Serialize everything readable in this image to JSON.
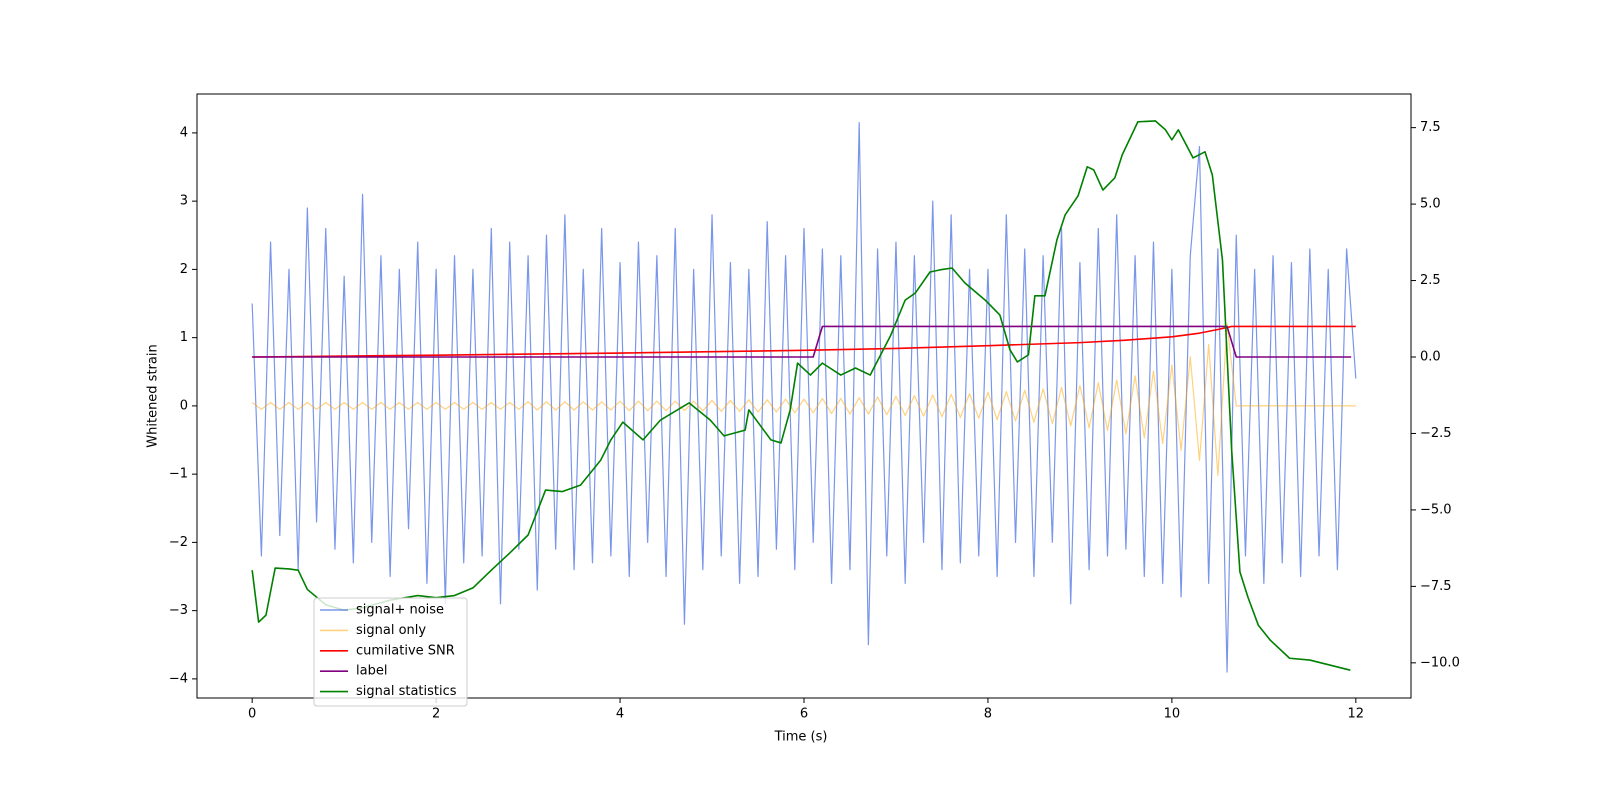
{
  "chart_data": {
    "type": "line",
    "xlabel": "Time (s)",
    "ylabel": "Whitened strain",
    "xlim": [
      -0.6,
      12.6
    ],
    "ylim": [
      -4.28,
      4.57
    ],
    "y2lim": [
      -11.15,
      8.6
    ],
    "xticks": [
      0,
      2,
      4,
      6,
      8,
      10,
      12
    ],
    "yticks": [
      {
        "value": -4,
        "label": "−4"
      },
      {
        "value": -3,
        "label": "−3"
      },
      {
        "value": -2,
        "label": "−2"
      },
      {
        "value": -1,
        "label": "−1"
      },
      0,
      1,
      2,
      3,
      4
    ],
    "y2ticks": [
      {
        "value": -10,
        "label": "−10.0"
      },
      {
        "value": -7.5,
        "label": "−7.5"
      },
      {
        "value": -5,
        "label": "−5.0"
      },
      {
        "value": -2.5,
        "label": "−2.5"
      },
      {
        "value": 0,
        "label": "0.0"
      },
      {
        "value": 2.5,
        "label": "2.5"
      },
      {
        "value": 5,
        "label": "5.0"
      },
      {
        "value": 7.5,
        "label": "7.5"
      }
    ],
    "grid": false,
    "legend": "lower left",
    "x": [
      0,
      0.1,
      0.2,
      0.3,
      0.4,
      0.5,
      0.6,
      0.7,
      0.8,
      0.9,
      1,
      1.1,
      1.2,
      1.3,
      1.4,
      1.5,
      1.6,
      1.7,
      1.8,
      1.9,
      2,
      2.1,
      2.2,
      2.3,
      2.4,
      2.5,
      2.6,
      2.7,
      2.8,
      2.9,
      3,
      3.1,
      3.2,
      3.3,
      3.4,
      3.5,
      3.6,
      3.7,
      3.8,
      3.9,
      4,
      4.1,
      4.2,
      4.3,
      4.4,
      4.5,
      4.6,
      4.7,
      4.8,
      4.9,
      5,
      5.1,
      5.2,
      5.3,
      5.4,
      5.5,
      5.6,
      5.7,
      5.8,
      5.9,
      6,
      6.1,
      6.2,
      6.3,
      6.4,
      6.5,
      6.6,
      6.7,
      6.8,
      6.9,
      7,
      7.1,
      7.2,
      7.3,
      7.4,
      7.5,
      7.6,
      7.7,
      7.8,
      7.9,
      8,
      8.1,
      8.2,
      8.3,
      8.4,
      8.5,
      8.6,
      8.7,
      8.8,
      8.9,
      9,
      9.1,
      9.2,
      9.3,
      9.4,
      9.5,
      9.6,
      9.7,
      9.8,
      9.9,
      10,
      10.1,
      10.2,
      10.3,
      10.4,
      10.5,
      10.6,
      10.7,
      10.8,
      10.9,
      11,
      11.1,
      11.2,
      11.3,
      11.4,
      11.5,
      11.6,
      11.7,
      11.8,
      11.9,
      12
    ],
    "series": [
      {
        "name": "signal+ noise",
        "color": "royalblue",
        "values": [
          1.5,
          -2.2,
          2.4,
          -1.9,
          2.0,
          -2.4,
          2.9,
          -1.7,
          2.6,
          -2.1,
          1.9,
          -2.3,
          3.1,
          -2.0,
          2.2,
          -2.5,
          2.0,
          -1.8,
          2.4,
          -2.6,
          2.0,
          -2.9,
          2.2,
          -2.3,
          2.0,
          -2.2,
          2.6,
          -2.9,
          2.4,
          -2.1,
          2.2,
          -2.7,
          2.5,
          -2.1,
          2.8,
          -2.4,
          2.0,
          -2.3,
          2.6,
          -2.2,
          2.1,
          -2.5,
          2.4,
          -2.0,
          2.2,
          -2.5,
          2.6,
          -3.2,
          2.0,
          -2.4,
          2.8,
          -2.2,
          2.1,
          -2.6,
          2.0,
          -2.5,
          2.7,
          -2.1,
          2.2,
          -2.4,
          2.6,
          -2.0,
          2.3,
          -2.6,
          2.2,
          -2.4,
          4.15,
          -3.5,
          2.3,
          -2.2,
          2.4,
          -2.6,
          2.2,
          -2.0,
          3.0,
          -2.4,
          2.8,
          -2.3,
          2.0,
          -2.2,
          2.0,
          -2.5,
          2.8,
          -2.0,
          2.3,
          -2.5,
          2.2,
          -2.0,
          2.6,
          -2.9,
          2.1,
          -2.4,
          2.6,
          -2.2,
          2.8,
          -2.1,
          2.2,
          -2.5,
          2.4,
          -2.6,
          2.0,
          -2.8,
          2.2,
          3.8,
          -2.6,
          2.3,
          -3.9,
          2.5,
          -2.2,
          2.0,
          -2.6,
          2.2,
          -2.3,
          2.1,
          -2.5,
          2.3,
          -2.2,
          2.0,
          -2.4,
          2.3,
          0.4
        ]
      },
      {
        "name": "signal only",
        "color": "orange",
        "values": [
          0.05,
          -0.05,
          0.05,
          -0.05,
          0.05,
          -0.05,
          0.05,
          -0.05,
          0.05,
          -0.05,
          0.05,
          -0.05,
          0.05,
          -0.05,
          0.05,
          -0.05,
          0.05,
          -0.05,
          0.05,
          -0.05,
          0.05,
          -0.05,
          0.05,
          -0.05,
          0.05,
          -0.05,
          0.05,
          -0.05,
          0.05,
          -0.05,
          0.06,
          -0.06,
          0.06,
          -0.06,
          0.06,
          -0.06,
          0.06,
          -0.06,
          0.06,
          -0.06,
          0.07,
          -0.07,
          0.07,
          -0.07,
          0.07,
          -0.07,
          0.07,
          -0.07,
          0.07,
          -0.07,
          0.08,
          -0.08,
          0.08,
          -0.08,
          0.09,
          -0.09,
          0.09,
          -0.09,
          0.1,
          -0.1,
          0.1,
          -0.1,
          0.11,
          -0.11,
          0.11,
          -0.12,
          0.12,
          -0.12,
          0.13,
          -0.13,
          0.14,
          -0.14,
          0.15,
          -0.15,
          0.16,
          -0.16,
          0.17,
          -0.17,
          0.18,
          -0.18,
          0.2,
          -0.2,
          0.21,
          -0.22,
          0.23,
          -0.24,
          0.25,
          -0.26,
          0.27,
          -0.29,
          0.3,
          -0.32,
          0.34,
          -0.36,
          0.38,
          -0.41,
          0.44,
          -0.47,
          0.51,
          -0.55,
          0.6,
          -0.65,
          0.72,
          -0.8,
          0.9,
          -1.02,
          1.2,
          0,
          0,
          0,
          0,
          0,
          0,
          0,
          0,
          0,
          0,
          0,
          0,
          0,
          0
        ]
      },
      {
        "name": "cumilative SNR",
        "color": "red",
        "axis": "y2",
        "x": [
          0,
          2,
          4,
          6,
          7,
          8,
          9,
          9.5,
          10,
          10.3,
          10.5,
          10.65,
          12
        ],
        "values": [
          0,
          0.06,
          0.13,
          0.22,
          0.28,
          0.37,
          0.47,
          0.55,
          0.66,
          0.78,
          0.9,
          1,
          1
        ]
      },
      {
        "name": "label",
        "color": "purple",
        "axis": "y2",
        "x": [
          0,
          6.1,
          6.2,
          10.6,
          10.7,
          11.95
        ],
        "values": [
          0,
          0,
          1,
          1,
          0,
          0
        ]
      },
      {
        "name": "signal statistics",
        "color": "green",
        "axis": "y2",
        "x": [
          0,
          0.07,
          0.15,
          0.25,
          0.4,
          0.5,
          0.6,
          0.8,
          1,
          1.2,
          1.5,
          1.8,
          2,
          2.2,
          2.4,
          2.6,
          2.8,
          3.0,
          3.19,
          3.37,
          3.57,
          3.79,
          3.9,
          4.03,
          4.25,
          4.44,
          4.75,
          4.98,
          5.13,
          5.36,
          5.4,
          5.64,
          5.75,
          5.85,
          5.93,
          6.07,
          6.2,
          6.4,
          6.56,
          6.72,
          6.94,
          7.1,
          7.21,
          7.37,
          7.48,
          7.61,
          7.75,
          7.97,
          8.13,
          8.24,
          8.32,
          8.44,
          8.51,
          8.62,
          8.75,
          8.84,
          8.98,
          9.08,
          9.15,
          9.25,
          9.38,
          9.46,
          9.63,
          9.82,
          9.93,
          10,
          10.07,
          10.23,
          10.36,
          10.44,
          10.55,
          10.65,
          10.74,
          10.83,
          10.94,
          11.07,
          11.28,
          11.5,
          11.94
        ],
        "values": [
          -6.97,
          -8.67,
          -8.44,
          -6.9,
          -6.93,
          -6.97,
          -7.6,
          -8.1,
          -8.28,
          -8.2,
          -7.95,
          -7.8,
          -7.87,
          -7.8,
          -7.55,
          -6.97,
          -6.41,
          -5.82,
          -4.35,
          -4.4,
          -4.19,
          -3.37,
          -2.71,
          -2.13,
          -2.71,
          -2.06,
          -1.5,
          -2.06,
          -2.58,
          -2.39,
          -1.73,
          -2.71,
          -2.81,
          -1.73,
          -0.2,
          -0.59,
          -0.2,
          -0.59,
          -0.36,
          -0.59,
          0.69,
          1.86,
          2.09,
          2.78,
          2.85,
          2.91,
          2.42,
          1.86,
          1.37,
          0.23,
          -0.16,
          0.07,
          2.0,
          2.0,
          3.83,
          4.65,
          5.27,
          6.22,
          6.12,
          5.46,
          5.86,
          6.61,
          7.69,
          7.72,
          7.43,
          7.1,
          7.43,
          6.51,
          6.71,
          5.95,
          3.17,
          -3.04,
          -7.03,
          -7.88,
          -8.77,
          -9.26,
          -9.85,
          -9.91,
          -10.24
        ]
      }
    ]
  }
}
